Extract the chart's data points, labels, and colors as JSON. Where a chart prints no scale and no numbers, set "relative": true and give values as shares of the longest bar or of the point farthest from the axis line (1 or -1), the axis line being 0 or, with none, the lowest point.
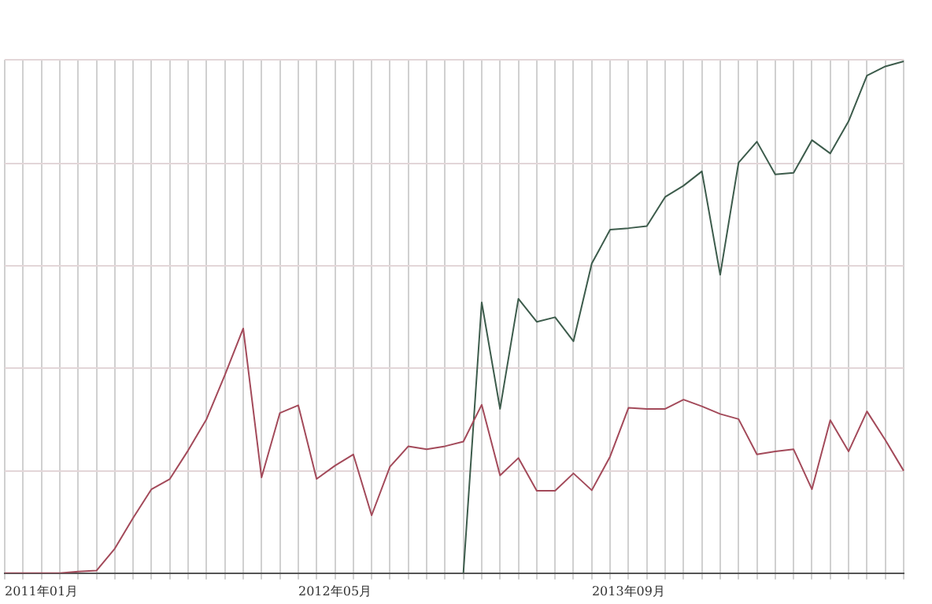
{
  "chart_data": {
    "type": "line",
    "relative": true,
    "grid": true,
    "legend": false,
    "marker": "none",
    "line_style": "solid",
    "categories": [
      null,
      null,
      "2011年01月",
      null,
      null,
      null,
      null,
      null,
      null,
      null,
      null,
      null,
      null,
      null,
      null,
      null,
      null,
      null,
      "2012年05月",
      null,
      null,
      null,
      null,
      null,
      null,
      null,
      null,
      null,
      null,
      null,
      null,
      null,
      null,
      null,
      "2013年09月",
      null,
      null,
      null,
      null,
      null,
      null,
      null,
      null,
      null,
      null,
      null,
      null,
      null,
      null,
      null
    ],
    "series": [
      {
        "color": "#a34a5a",
        "values": [
          0,
          0,
          0,
          0,
          0.003,
          0.005,
          0.048,
          0.108,
          0.164,
          0.184,
          0.24,
          0.301,
          0.387,
          0.478,
          0.187,
          0.313,
          0.328,
          0.184,
          0.21,
          0.232,
          0.113,
          0.208,
          0.248,
          0.242,
          0.248,
          0.257,
          0.329,
          0.191,
          0.225,
          0.161,
          0.161,
          0.195,
          0.162,
          0.228,
          0.323,
          0.321,
          0.321,
          0.339,
          0.326,
          0.311,
          0.301,
          0.232,
          0.238,
          0.242,
          0.164,
          0.299,
          0.238,
          0.316,
          0.26,
          0.2
        ]
      },
      {
        "color": "#3d5c4c",
        "values": [
          null,
          null,
          null,
          null,
          null,
          null,
          null,
          null,
          null,
          null,
          null,
          null,
          null,
          null,
          null,
          null,
          null,
          null,
          null,
          null,
          null,
          null,
          null,
          null,
          null,
          0,
          0.529,
          0.321,
          0.536,
          0.491,
          0.5,
          0.453,
          0.605,
          0.671,
          0.674,
          0.678,
          0.735,
          0.757,
          0.785,
          0.583,
          0.802,
          0.843,
          0.779,
          0.782,
          0.846,
          0.82,
          0.883,
          0.972,
          0.99,
          1
        ]
      }
    ]
  }
}
